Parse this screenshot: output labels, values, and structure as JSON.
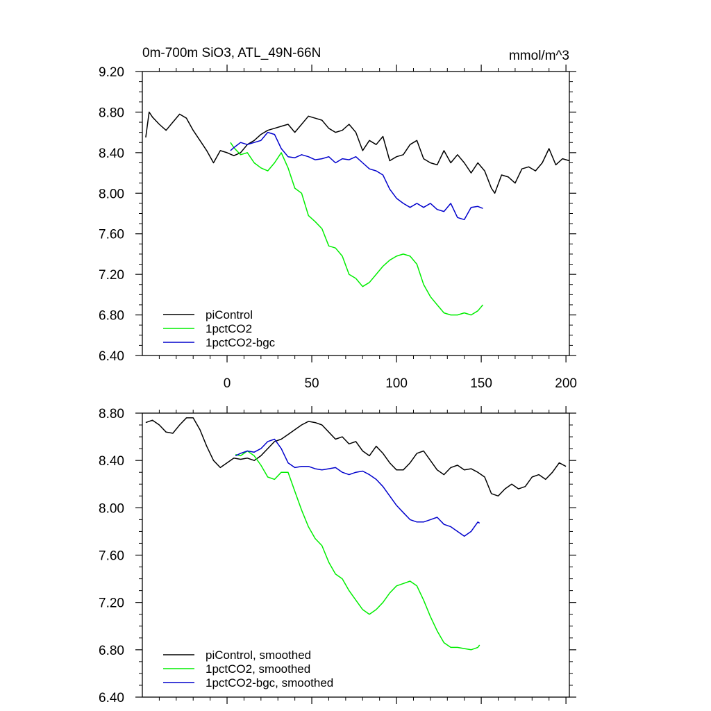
{
  "chart_data": [
    {
      "type": "line",
      "title": "0m-700m SiO3, ATL_49N-66N",
      "units": "mmol/m^3",
      "xlim": [
        -50,
        202
      ],
      "ylim": [
        6.4,
        9.2
      ],
      "xticks": [
        0,
        50,
        100,
        150,
        200
      ],
      "yticks": [
        "6.40",
        "6.80",
        "7.20",
        "7.60",
        "8.00",
        "8.40",
        "8.80",
        "9.20"
      ],
      "legend": {
        "location": "bottom-left"
      },
      "series": [
        {
          "name": "piControl",
          "color": "#000000",
          "x": [
            -48,
            -46,
            -44,
            -40,
            -36,
            -32,
            -28,
            -24,
            -20,
            -16,
            -12,
            -8,
            -4,
            0,
            4,
            8,
            12,
            16,
            20,
            24,
            28,
            32,
            36,
            40,
            44,
            48,
            52,
            56,
            60,
            64,
            68,
            72,
            76,
            80,
            84,
            88,
            92,
            96,
            100,
            104,
            108,
            112,
            116,
            120,
            124,
            128,
            132,
            136,
            140,
            144,
            148,
            152,
            156,
            158,
            162,
            166,
            170,
            174,
            178,
            182,
            186,
            190,
            194,
            198,
            202
          ],
          "values": [
            8.55,
            8.8,
            8.75,
            8.68,
            8.62,
            8.7,
            8.78,
            8.74,
            8.62,
            8.52,
            8.42,
            8.3,
            8.42,
            8.4,
            8.37,
            8.4,
            8.48,
            8.52,
            8.58,
            8.62,
            8.64,
            8.66,
            8.68,
            8.6,
            8.68,
            8.76,
            8.74,
            8.72,
            8.64,
            8.6,
            8.62,
            8.68,
            8.6,
            8.42,
            8.52,
            8.48,
            8.56,
            8.32,
            8.36,
            8.38,
            8.48,
            8.52,
            8.34,
            8.3,
            8.28,
            8.42,
            8.3,
            8.38,
            8.3,
            8.2,
            8.3,
            8.22,
            8.05,
            8.0,
            8.18,
            8.16,
            8.1,
            8.24,
            8.26,
            8.22,
            8.3,
            8.44,
            8.28,
            8.34,
            8.32
          ]
        },
        {
          "name": "1pctCO2",
          "color": "#00ee00",
          "x": [
            2,
            4,
            8,
            12,
            16,
            20,
            24,
            28,
            32,
            36,
            40,
            44,
            48,
            52,
            56,
            60,
            64,
            68,
            72,
            76,
            80,
            84,
            88,
            92,
            96,
            100,
            104,
            108,
            112,
            116,
            120,
            124,
            128,
            132,
            136,
            140,
            144,
            148,
            151
          ],
          "values": [
            8.5,
            8.45,
            8.38,
            8.4,
            8.3,
            8.25,
            8.22,
            8.3,
            8.4,
            8.25,
            8.05,
            8.0,
            7.78,
            7.72,
            7.65,
            7.48,
            7.46,
            7.38,
            7.2,
            7.16,
            7.08,
            7.12,
            7.2,
            7.28,
            7.34,
            7.38,
            7.4,
            7.38,
            7.3,
            7.1,
            6.98,
            6.9,
            6.82,
            6.8,
            6.8,
            6.82,
            6.8,
            6.84,
            6.9
          ]
        },
        {
          "name": "1pctCO2-bgc",
          "color": "#0000cc",
          "x": [
            2,
            4,
            8,
            12,
            16,
            20,
            24,
            28,
            32,
            36,
            40,
            44,
            48,
            52,
            56,
            60,
            64,
            68,
            72,
            76,
            80,
            84,
            88,
            92,
            96,
            100,
            104,
            108,
            112,
            116,
            120,
            124,
            128,
            132,
            136,
            140,
            144,
            148,
            151
          ],
          "values": [
            8.42,
            8.45,
            8.5,
            8.48,
            8.5,
            8.52,
            8.6,
            8.58,
            8.44,
            8.36,
            8.35,
            8.38,
            8.36,
            8.33,
            8.34,
            8.36,
            8.3,
            8.34,
            8.33,
            8.36,
            8.3,
            8.24,
            8.22,
            8.18,
            8.04,
            7.95,
            7.9,
            7.86,
            7.9,
            7.86,
            7.9,
            7.84,
            7.82,
            7.9,
            7.76,
            7.74,
            7.86,
            7.87,
            7.85
          ]
        }
      ]
    },
    {
      "type": "line",
      "title": "",
      "xlim": [
        -50,
        202
      ],
      "ylim": [
        6.4,
        8.8
      ],
      "yticks": [
        "6.40",
        "6.80",
        "7.20",
        "7.60",
        "8.00",
        "8.40",
        "8.80"
      ],
      "legend": {
        "location": "bottom-left"
      },
      "series": [
        {
          "name": "piControl, smoothed",
          "color": "#000000",
          "x": [
            -48,
            -44,
            -40,
            -36,
            -32,
            -28,
            -24,
            -20,
            -16,
            -12,
            -8,
            -4,
            0,
            4,
            8,
            12,
            16,
            20,
            24,
            28,
            32,
            36,
            40,
            44,
            48,
            52,
            56,
            60,
            64,
            68,
            72,
            76,
            80,
            84,
            88,
            92,
            96,
            100,
            104,
            108,
            112,
            116,
            120,
            124,
            128,
            132,
            136,
            140,
            144,
            148,
            152,
            156,
            160,
            164,
            168,
            172,
            176,
            180,
            184,
            188,
            192,
            196,
            200
          ],
          "values": [
            8.72,
            8.74,
            8.7,
            8.64,
            8.63,
            8.7,
            8.76,
            8.76,
            8.66,
            8.52,
            8.4,
            8.34,
            8.38,
            8.42,
            8.41,
            8.42,
            8.4,
            8.44,
            8.5,
            8.56,
            8.58,
            8.62,
            8.66,
            8.7,
            8.73,
            8.72,
            8.7,
            8.64,
            8.58,
            8.6,
            8.54,
            8.56,
            8.48,
            8.44,
            8.52,
            8.46,
            8.38,
            8.32,
            8.32,
            8.38,
            8.46,
            8.48,
            8.4,
            8.32,
            8.28,
            8.34,
            8.36,
            8.32,
            8.33,
            8.3,
            8.26,
            8.12,
            8.1,
            8.16,
            8.2,
            8.16,
            8.18,
            8.26,
            8.28,
            8.24,
            8.3,
            8.38,
            8.35
          ]
        },
        {
          "name": "1pctCO2, smoothed",
          "color": "#00ee00",
          "x": [
            5,
            8,
            12,
            16,
            20,
            24,
            28,
            32,
            36,
            40,
            44,
            48,
            52,
            56,
            60,
            64,
            68,
            72,
            76,
            80,
            84,
            88,
            92,
            96,
            100,
            104,
            108,
            112,
            116,
            120,
            124,
            128,
            132,
            136,
            140,
            144,
            148,
            149
          ],
          "values": [
            8.45,
            8.44,
            8.48,
            8.44,
            8.36,
            8.26,
            8.24,
            8.3,
            8.3,
            8.14,
            7.98,
            7.84,
            7.74,
            7.68,
            7.54,
            7.44,
            7.4,
            7.3,
            7.22,
            7.14,
            7.1,
            7.14,
            7.2,
            7.28,
            7.34,
            7.36,
            7.38,
            7.34,
            7.22,
            7.08,
            6.96,
            6.86,
            6.82,
            6.82,
            6.81,
            6.8,
            6.82,
            6.84
          ]
        },
        {
          "name": "1pctCO2-bgc, smoothed",
          "color": "#0000cc",
          "x": [
            5,
            8,
            12,
            16,
            20,
            24,
            28,
            32,
            36,
            40,
            44,
            48,
            52,
            56,
            60,
            64,
            68,
            72,
            76,
            80,
            84,
            88,
            92,
            96,
            100,
            104,
            108,
            112,
            116,
            120,
            124,
            128,
            132,
            136,
            140,
            144,
            148,
            149
          ],
          "values": [
            8.44,
            8.46,
            8.48,
            8.47,
            8.5,
            8.56,
            8.58,
            8.5,
            8.38,
            8.34,
            8.35,
            8.35,
            8.33,
            8.32,
            8.33,
            8.34,
            8.3,
            8.28,
            8.3,
            8.31,
            8.28,
            8.24,
            8.18,
            8.1,
            8.02,
            7.96,
            7.9,
            7.88,
            7.88,
            7.9,
            7.92,
            7.86,
            7.84,
            7.8,
            7.76,
            7.8,
            7.88,
            7.87
          ]
        }
      ]
    }
  ]
}
